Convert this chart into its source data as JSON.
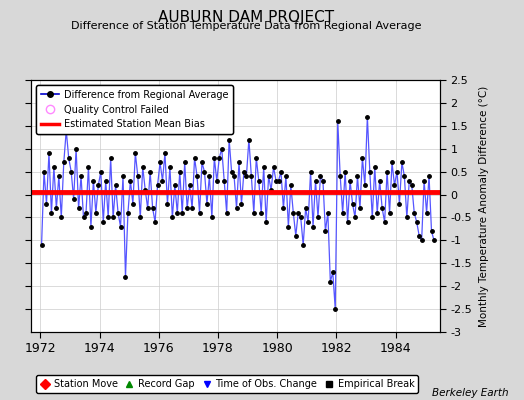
{
  "title": "AUBURN DAM PROJECT",
  "subtitle": "Difference of Station Temperature Data from Regional Average",
  "ylabel": "Monthly Temperature Anomaly Difference (°C)",
  "xlabel_ticks": [
    1972,
    1974,
    1976,
    1978,
    1980,
    1982,
    1984
  ],
  "ylim": [
    -3.0,
    2.5
  ],
  "yticks": [
    -2.5,
    -2.0,
    -1.5,
    -1.0,
    -0.5,
    0.0,
    0.5,
    1.0,
    1.5,
    2.0,
    2.5
  ],
  "ytick_labels": [
    "-2.5",
    "-2",
    "-1.5",
    "-1",
    "-0.5",
    "0",
    "0.5",
    "1",
    "1.5",
    "2",
    "2.5"
  ],
  "ytick_bottom": -3.0,
  "bias_line": 0.05,
  "watermark": "Berkeley Earth",
  "background_color": "#d8d8d8",
  "plot_bg_color": "#ffffff",
  "line_color": "#5555ff",
  "marker_color": "#000000",
  "bias_color": "#ff0000",
  "legend_items": [
    {
      "label": "Difference from Regional Average",
      "color": "#0000cc",
      "type": "line"
    },
    {
      "label": "Quality Control Failed",
      "color": "#ff88ff",
      "type": "circle"
    },
    {
      "label": "Estimated Station Mean Bias",
      "color": "#ff0000",
      "type": "line"
    }
  ],
  "bottom_legend_items": [
    {
      "label": "Station Move",
      "color": "#ff0000",
      "marker": "D"
    },
    {
      "label": "Record Gap",
      "color": "#008800",
      "marker": "^"
    },
    {
      "label": "Time of Obs. Change",
      "color": "#0000ff",
      "marker": "v"
    },
    {
      "label": "Empirical Break",
      "color": "#000000",
      "marker": "s"
    }
  ],
  "data_x": [
    1972.042,
    1972.125,
    1972.208,
    1972.292,
    1972.375,
    1972.458,
    1972.542,
    1972.625,
    1972.708,
    1972.792,
    1972.875,
    1972.958,
    1973.042,
    1973.125,
    1973.208,
    1973.292,
    1973.375,
    1973.458,
    1973.542,
    1973.625,
    1973.708,
    1973.792,
    1973.875,
    1973.958,
    1974.042,
    1974.125,
    1974.208,
    1974.292,
    1974.375,
    1974.458,
    1974.542,
    1974.625,
    1974.708,
    1974.792,
    1974.875,
    1974.958,
    1975.042,
    1975.125,
    1975.208,
    1975.292,
    1975.375,
    1975.458,
    1975.542,
    1975.625,
    1975.708,
    1975.792,
    1975.875,
    1975.958,
    1976.042,
    1976.125,
    1976.208,
    1976.292,
    1976.375,
    1976.458,
    1976.542,
    1976.625,
    1976.708,
    1976.792,
    1976.875,
    1976.958,
    1977.042,
    1977.125,
    1977.208,
    1977.292,
    1977.375,
    1977.458,
    1977.542,
    1977.625,
    1977.708,
    1977.792,
    1977.875,
    1977.958,
    1978.042,
    1978.125,
    1978.208,
    1978.292,
    1978.375,
    1978.458,
    1978.542,
    1978.625,
    1978.708,
    1978.792,
    1978.875,
    1978.958,
    1979.042,
    1979.125,
    1979.208,
    1979.292,
    1979.375,
    1979.458,
    1979.542,
    1979.625,
    1979.708,
    1979.792,
    1979.875,
    1979.958,
    1980.042,
    1980.125,
    1980.208,
    1980.292,
    1980.375,
    1980.458,
    1980.542,
    1980.625,
    1980.708,
    1980.792,
    1980.875,
    1980.958,
    1981.042,
    1981.125,
    1981.208,
    1981.292,
    1981.375,
    1981.458,
    1981.542,
    1981.625,
    1981.708,
    1981.792,
    1981.875,
    1981.958,
    1982.042,
    1982.125,
    1982.208,
    1982.292,
    1982.375,
    1982.458,
    1982.542,
    1982.625,
    1982.708,
    1982.792,
    1982.875,
    1982.958,
    1983.042,
    1983.125,
    1983.208,
    1983.292,
    1983.375,
    1983.458,
    1983.542,
    1983.625,
    1983.708,
    1983.792,
    1983.875,
    1983.958,
    1984.042,
    1984.125,
    1984.208,
    1984.292,
    1984.375,
    1984.458,
    1984.542,
    1984.625,
    1984.708,
    1984.792,
    1984.875,
    1984.958,
    1985.042,
    1985.125,
    1985.208,
    1985.292
  ],
  "data_y": [
    -1.1,
    0.5,
    -0.2,
    0.9,
    -0.4,
    0.6,
    -0.3,
    0.4,
    -0.5,
    0.7,
    1.4,
    0.8,
    0.5,
    -0.1,
    1.0,
    -0.3,
    0.4,
    -0.5,
    -0.4,
    0.6,
    -0.7,
    0.3,
    -0.4,
    0.2,
    0.5,
    -0.6,
    0.3,
    -0.5,
    0.8,
    -0.5,
    0.2,
    -0.4,
    -0.7,
    0.4,
    -1.8,
    -0.4,
    0.3,
    -0.2,
    0.9,
    0.4,
    -0.5,
    0.6,
    0.1,
    -0.3,
    0.5,
    -0.3,
    -0.6,
    0.2,
    0.7,
    0.3,
    0.9,
    -0.2,
    0.6,
    -0.5,
    0.2,
    -0.4,
    0.5,
    -0.4,
    0.7,
    -0.3,
    0.2,
    -0.3,
    0.8,
    0.4,
    -0.4,
    0.7,
    0.5,
    -0.2,
    0.4,
    -0.5,
    0.8,
    0.3,
    0.8,
    1.0,
    0.3,
    -0.4,
    1.2,
    0.5,
    0.4,
    -0.3,
    0.7,
    -0.2,
    0.5,
    0.4,
    1.2,
    0.4,
    -0.4,
    0.8,
    0.3,
    -0.4,
    0.6,
    -0.6,
    0.4,
    0.1,
    0.6,
    0.3,
    0.3,
    0.5,
    -0.3,
    0.4,
    -0.7,
    0.2,
    -0.4,
    -0.9,
    -0.4,
    -0.5,
    -1.1,
    -0.3,
    -0.6,
    0.5,
    -0.7,
    0.3,
    -0.5,
    0.4,
    0.3,
    -0.8,
    -0.4,
    -1.9,
    -1.7,
    -2.5,
    1.6,
    0.4,
    -0.4,
    0.5,
    -0.6,
    0.3,
    -0.2,
    -0.5,
    0.4,
    -0.3,
    0.8,
    0.2,
    1.7,
    0.5,
    -0.5,
    0.6,
    -0.4,
    0.3,
    -0.3,
    -0.6,
    0.5,
    -0.4,
    0.7,
    0.2,
    0.5,
    -0.2,
    0.7,
    0.4,
    -0.5,
    0.3,
    0.2,
    -0.4,
    -0.6,
    -0.9,
    -1.0,
    0.3,
    -0.4,
    0.4,
    -0.8,
    -1.0
  ]
}
